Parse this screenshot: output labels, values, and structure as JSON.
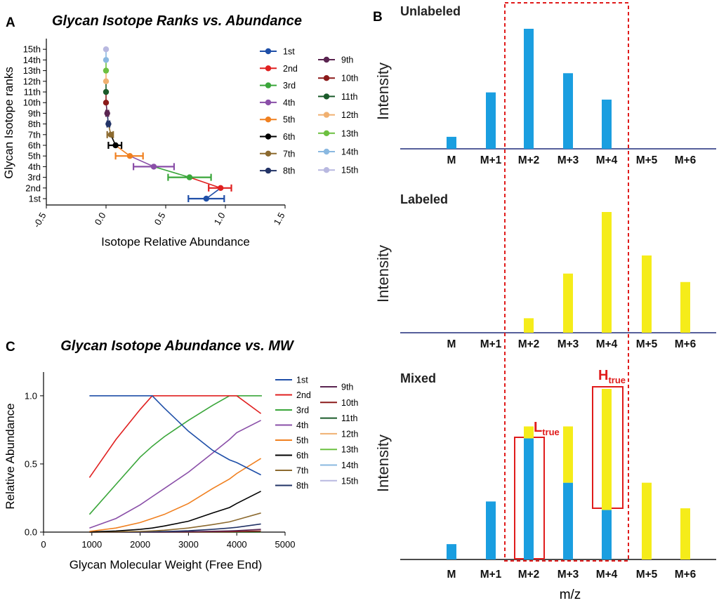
{
  "panelA": {
    "letter": "A",
    "title": "Glycan Isotope Ranks vs. Abundance",
    "xlabel": "Isotope Relative Abundance",
    "ylabel": "Glycan Isotope ranks",
    "xticks": [
      "-0.5",
      "0.0",
      "0.5",
      "1.0",
      "1.5"
    ]
  },
  "panelB": {
    "letter": "B",
    "xlabel": "m/z",
    "categories": [
      "M",
      "M+1",
      "M+2",
      "M+3",
      "M+4",
      "M+5",
      "M+6"
    ],
    "ylabel": "Intensity",
    "unlabeled_title": "Unlabeled",
    "labeled_title": "Labeled",
    "mixed_title": "Mixed",
    "l_true_main": "L",
    "l_true_sub": "true",
    "h_true_main": "H",
    "h_true_sub": "true"
  },
  "panelC": {
    "letter": "C",
    "title": "Glycan Isotope Abundance vs. MW",
    "xlabel": "Glycan Molecular Weight (Free End)",
    "ylabel": "Relative Abundance",
    "xticks": [
      "0",
      "1000",
      "2000",
      "3000",
      "4000",
      "5000"
    ],
    "yticks": [
      "0.0",
      "0.5",
      "1.0"
    ]
  },
  "colors": {
    "c1": "#1f4fa8",
    "c2": "#e02020",
    "c3": "#3aa63a",
    "c4": "#8a4fa8",
    "c5": "#f08020",
    "c6": "#000000",
    "c7": "#8c6a2f",
    "c8": "#223366",
    "c9": "#5a2450",
    "c10": "#8b1a1a",
    "c11": "#1a5a2a",
    "c12": "#f0b070",
    "c13": "#6cc040",
    "c14": "#8ab8e0",
    "c15": "#b8b8e0",
    "unlabeled_bar": "#1a9ee0",
    "labeled_bar": "#f5ec1a",
    "box": "#e01b1b"
  },
  "chart_data": [
    {
      "type": "scatter",
      "title": "Glycan Isotope Ranks vs. Abundance",
      "xlabel": "Isotope Relative Abundance",
      "ylabel": "Glycan Isotope ranks",
      "xlim": [
        -0.5,
        1.5
      ],
      "categories": [
        "1st",
        "2nd",
        "3rd",
        "4th",
        "5th",
        "6th",
        "7th",
        "8th",
        "9th",
        "10th",
        "11th",
        "12th",
        "13th",
        "14th",
        "15th"
      ],
      "values": [
        0.84,
        0.96,
        0.7,
        0.4,
        0.2,
        0.08,
        0.04,
        0.02,
        0.01,
        0.0,
        0.0,
        0.0,
        0.0,
        0.0,
        0.0
      ],
      "error_low": [
        0.69,
        0.86,
        0.52,
        0.23,
        0.08,
        0.02,
        0.01,
        0.01,
        0.0,
        0.0,
        0.0,
        0.0,
        0.0,
        0.0,
        0.0
      ],
      "error_high": [
        0.99,
        1.05,
        0.88,
        0.57,
        0.31,
        0.13,
        0.06,
        0.03,
        0.02,
        0.0,
        0.0,
        0.0,
        0.0,
        0.0,
        0.0
      ],
      "legend": [
        "1st",
        "2nd",
        "3rd",
        "4th",
        "5th",
        "6th",
        "7th",
        "8th",
        "9th",
        "10th",
        "11th",
        "12th",
        "13th",
        "14th",
        "15th"
      ]
    },
    {
      "type": "bar",
      "title": "Unlabeled",
      "categories": [
        "M",
        "M+1",
        "M+2",
        "M+3",
        "M+4",
        "M+5",
        "M+6"
      ],
      "values": [
        0.1,
        0.47,
        1.0,
        0.63,
        0.41,
        0,
        0
      ]
    },
    {
      "type": "bar",
      "title": "Labeled",
      "categories": [
        "M",
        "M+1",
        "M+2",
        "M+3",
        "M+4",
        "M+5",
        "M+6"
      ],
      "values": [
        0,
        0,
        0.12,
        0.49,
        1.0,
        0.64,
        0.42
      ]
    },
    {
      "type": "bar",
      "title": "Mixed",
      "categories": [
        "M",
        "M+1",
        "M+2",
        "M+3",
        "M+4",
        "M+5",
        "M+6"
      ],
      "series": [
        {
          "name": "Unlabeled",
          "values": [
            0.09,
            0.34,
            0.71,
            0.45,
            0.29,
            0,
            0
          ]
        },
        {
          "name": "Labeled",
          "values": [
            0,
            0,
            0.07,
            0.33,
            0.71,
            0.45,
            0.3
          ]
        }
      ]
    },
    {
      "type": "line",
      "title": "Glycan Isotope Abundance vs. MW",
      "xlabel": "Glycan Molecular Weight (Free End)",
      "ylabel": "Relative Abundance",
      "xlim": [
        0,
        5000
      ],
      "ylim": [
        0,
        1.2
      ],
      "x": [
        950,
        1500,
        2000,
        2250,
        2500,
        3000,
        3500,
        3850,
        4000,
        4500
      ],
      "series": [
        {
          "name": "1st",
          "values": [
            1.0,
            1.0,
            1.0,
            1.0,
            0.91,
            0.74,
            0.6,
            0.53,
            0.51,
            0.42
          ]
        },
        {
          "name": "2nd",
          "values": [
            0.4,
            0.68,
            0.9,
            1.0,
            1.0,
            1.0,
            1.0,
            1.0,
            1.0,
            0.87
          ]
        },
        {
          "name": "3rd",
          "values": [
            0.13,
            0.35,
            0.55,
            0.63,
            0.7,
            0.82,
            0.93,
            1.0,
            1.0,
            1.0
          ]
        },
        {
          "name": "4th",
          "values": [
            0.03,
            0.1,
            0.2,
            0.26,
            0.32,
            0.44,
            0.58,
            0.68,
            0.73,
            0.82
          ]
        },
        {
          "name": "5th",
          "values": [
            0.005,
            0.03,
            0.07,
            0.1,
            0.13,
            0.21,
            0.32,
            0.39,
            0.43,
            0.54
          ]
        },
        {
          "name": "6th",
          "values": [
            0.001,
            0.008,
            0.02,
            0.03,
            0.045,
            0.08,
            0.14,
            0.18,
            0.21,
            0.3
          ]
        },
        {
          "name": "7th",
          "values": [
            0,
            0.002,
            0.005,
            0.009,
            0.014,
            0.03,
            0.055,
            0.075,
            0.09,
            0.14
          ]
        },
        {
          "name": "8th",
          "values": [
            0,
            0,
            0.001,
            0.002,
            0.004,
            0.01,
            0.02,
            0.03,
            0.035,
            0.06
          ]
        },
        {
          "name": "9th",
          "values": [
            0,
            0,
            0,
            0,
            0.001,
            0.003,
            0.006,
            0.009,
            0.011,
            0.02
          ]
        },
        {
          "name": "10th",
          "values": [
            0,
            0,
            0,
            0,
            0,
            0.001,
            0.002,
            0.003,
            0.004,
            0.008
          ]
        },
        {
          "name": "11th",
          "values": [
            0,
            0,
            0,
            0,
            0,
            0,
            0,
            0,
            0,
            0
          ]
        },
        {
          "name": "12th",
          "values": [
            0,
            0,
            0,
            0,
            0,
            0,
            0,
            0,
            0,
            0
          ]
        },
        {
          "name": "13th",
          "values": [
            0,
            0,
            0,
            0,
            0,
            0,
            0,
            0,
            0,
            0
          ]
        },
        {
          "name": "14th",
          "values": [
            0,
            0,
            0,
            0,
            0,
            0,
            0,
            0,
            0,
            0
          ]
        },
        {
          "name": "15th",
          "values": [
            0,
            0,
            0,
            0,
            0,
            0,
            0,
            0,
            0,
            0
          ]
        }
      ]
    }
  ]
}
